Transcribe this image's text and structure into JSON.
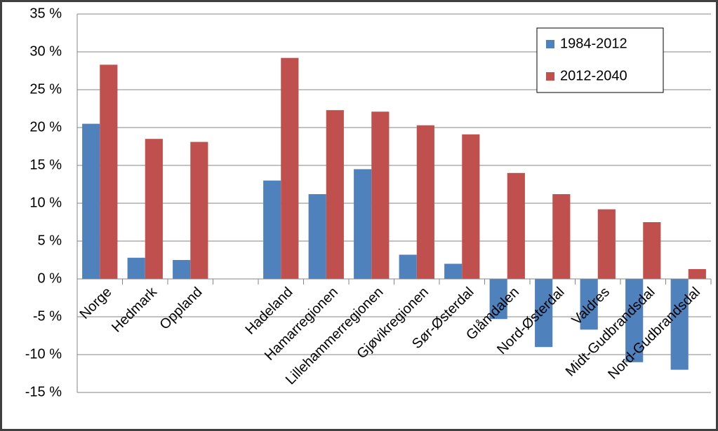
{
  "chart_data": {
    "type": "bar",
    "categories": [
      "Norge",
      "Hedmark",
      "Oppland",
      null,
      "Hadeland",
      "Hamarregionen",
      "Lillehammerregionen",
      "Gjøvikregionen",
      "Sør-Østerdal",
      "Glåmdalen",
      "Nord-Østerdal",
      "Valdres",
      "Midt-Gudbrandsdal",
      "Nord-Gudbrandsdal"
    ],
    "series": [
      {
        "name": "1984-2012",
        "color": "#4f81bd",
        "values": [
          20.5,
          2.8,
          2.5,
          null,
          13,
          11.2,
          14.5,
          3.2,
          2.0,
          -5.3,
          -9,
          -6.7,
          -11,
          -12
        ]
      },
      {
        "name": "2012-2040",
        "color": "#c0504d",
        "values": [
          28.3,
          18.5,
          18.1,
          null,
          29.2,
          22.3,
          22.1,
          20.3,
          19.1,
          14,
          11.2,
          9.2,
          7.5,
          1.3
        ]
      }
    ],
    "ylim": [
      -15,
      35
    ],
    "yticks": [
      {
        "value": -15,
        "label": "-15 %"
      },
      {
        "value": -10,
        "label": "-10 %"
      },
      {
        "value": -5,
        "label": "-5 %"
      },
      {
        "value": 0,
        "label": "0 %"
      },
      {
        "value": 5,
        "label": "5 %"
      },
      {
        "value": 10,
        "label": "10 %"
      },
      {
        "value": 15,
        "label": "15 %"
      },
      {
        "value": 20,
        "label": "20 %"
      },
      {
        "value": 25,
        "label": "25 %"
      },
      {
        "value": 30,
        "label": "30 %"
      },
      {
        "value": 35,
        "label": "35 %"
      }
    ],
    "grid": true,
    "legend": "top-right"
  }
}
